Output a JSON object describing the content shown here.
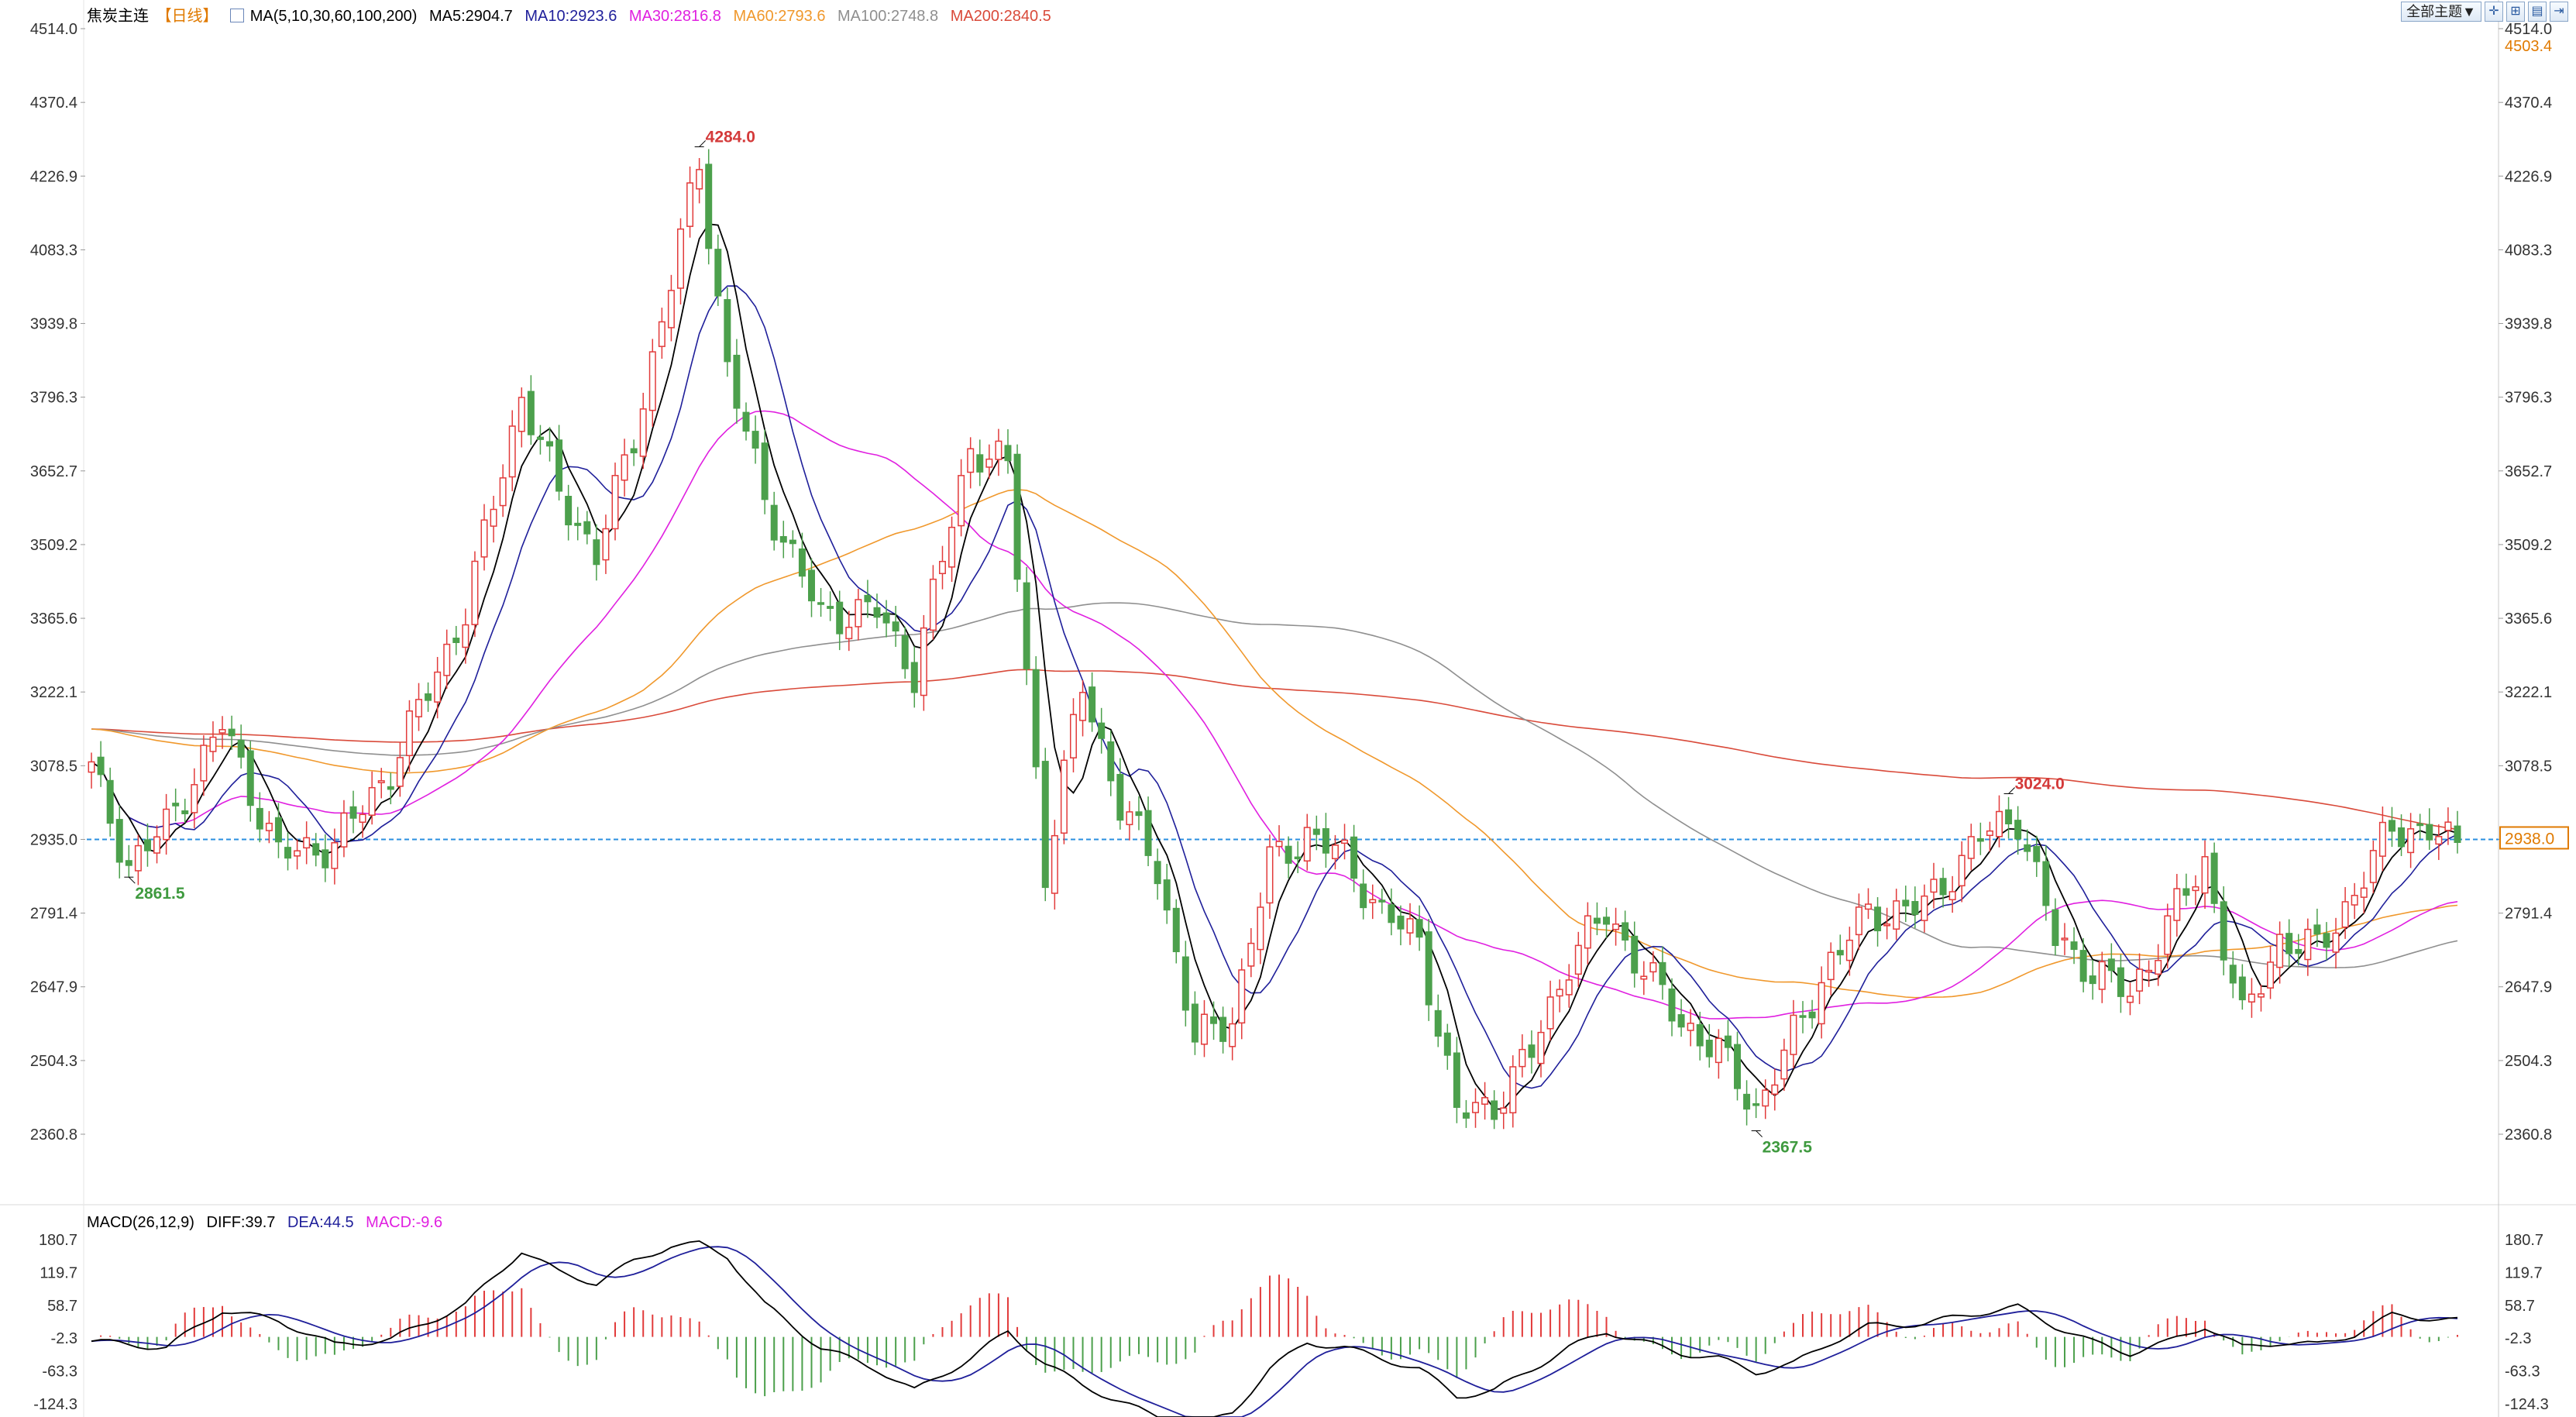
{
  "header": {
    "symbol": "焦炭主连",
    "period": "【日线】",
    "ma_label": "MA(5,10,30,60,100,200)",
    "ma5": "MA5:2904.7",
    "ma10": "MA10:2923.6",
    "ma30": "MA30:2816.8",
    "ma60": "MA60:2793.6",
    "ma100": "MA100:2748.8",
    "ma200": "MA200:2840.5"
  },
  "toolbar": {
    "theme_button": "全部主题▼"
  },
  "macd_header": {
    "label": "MACD(26,12,9)",
    "diff": "DIFF:39.7",
    "dea": "DEA:44.5",
    "macd": "MACD:-9.6"
  },
  "colors": {
    "up": "#e23b3b",
    "down": "#4ca04c",
    "ma5": "#000000",
    "ma10": "#1f1f9a",
    "ma30": "#e020e0",
    "ma60": "#f0982c",
    "ma100": "#8f8f8f",
    "ma200": "#d94a3a",
    "ref_line": "#2a8fe0"
  },
  "chart_data": {
    "type": "candlestick",
    "y_ticks": [
      "4514.0",
      "4370.4",
      "4226.9",
      "4083.3",
      "3939.8",
      "3796.3",
      "3652.7",
      "3509.2",
      "3365.6",
      "3222.1",
      "3078.5",
      "2935.0",
      "2791.4",
      "2647.9",
      "2504.3",
      "2360.8"
    ],
    "ylim": [
      2360.8,
      4514.0
    ],
    "extra_right_label": "4503.4",
    "current_price_label": "2938.0",
    "current_price": 2938.0,
    "ref_line_value": 2935.0,
    "annotations": [
      {
        "text": "4284.0",
        "value": 4284.0,
        "index": 65,
        "kind": "high"
      },
      {
        "text": "2861.5",
        "value": 2861.5,
        "index": 4,
        "kind": "low"
      },
      {
        "text": "2367.5",
        "value": 2367.5,
        "index": 178,
        "kind": "low"
      },
      {
        "text": "3024.0",
        "value": 3024.0,
        "index": 205,
        "kind": "high"
      }
    ],
    "anchors": [
      [
        0,
        3070
      ],
      [
        4,
        2885
      ],
      [
        8,
        2960
      ],
      [
        14,
        3160
      ],
      [
        20,
        2905
      ],
      [
        26,
        2925
      ],
      [
        32,
        3070
      ],
      [
        40,
        3380
      ],
      [
        46,
        3800
      ],
      [
        50,
        3610
      ],
      [
        54,
        3490
      ],
      [
        58,
        3720
      ],
      [
        62,
        4020
      ],
      [
        65,
        4260
      ],
      [
        68,
        3850
      ],
      [
        72,
        3600
      ],
      [
        78,
        3370
      ],
      [
        84,
        3380
      ],
      [
        88,
        3260
      ],
      [
        94,
        3700
      ],
      [
        98,
        3660
      ],
      [
        102,
        2870
      ],
      [
        106,
        3240
      ],
      [
        110,
        3000
      ],
      [
        114,
        2880
      ],
      [
        118,
        2540
      ],
      [
        122,
        2590
      ],
      [
        126,
        2890
      ],
      [
        130,
        2945
      ],
      [
        134,
        2900
      ],
      [
        138,
        2790
      ],
      [
        142,
        2740
      ],
      [
        146,
        2400
      ],
      [
        150,
        2420
      ],
      [
        154,
        2520
      ],
      [
        158,
        2700
      ],
      [
        162,
        2790
      ],
      [
        166,
        2680
      ],
      [
        170,
        2580
      ],
      [
        174,
        2520
      ],
      [
        178,
        2410
      ],
      [
        182,
        2550
      ],
      [
        186,
        2700
      ],
      [
        190,
        2790
      ],
      [
        196,
        2805
      ],
      [
        202,
        2940
      ],
      [
        206,
        2980
      ],
      [
        210,
        2740
      ],
      [
        214,
        2680
      ],
      [
        218,
        2630
      ],
      [
        222,
        2770
      ],
      [
        226,
        2890
      ],
      [
        230,
        2580
      ],
      [
        234,
        2740
      ],
      [
        238,
        2720
      ],
      [
        242,
        2830
      ],
      [
        246,
        2960
      ],
      [
        250,
        2950
      ],
      [
        253,
        2920
      ]
    ],
    "macd_ticks": [
      "180.7",
      "119.7",
      "58.7",
      "-2.3",
      "-63.3",
      "-124.3"
    ],
    "macd_ylim": [
      -124.3,
      180.7
    ],
    "macd_anchors": [
      [
        0,
        -8
      ],
      [
        8,
        -20
      ],
      [
        14,
        50
      ],
      [
        20,
        30
      ],
      [
        26,
        -15
      ],
      [
        32,
        -5
      ],
      [
        40,
        60
      ],
      [
        46,
        160
      ],
      [
        50,
        120
      ],
      [
        54,
        100
      ],
      [
        58,
        140
      ],
      [
        62,
        170
      ],
      [
        65,
        172
      ],
      [
        68,
        150
      ],
      [
        72,
        60
      ],
      [
        78,
        -20
      ],
      [
        84,
        -60
      ],
      [
        88,
        -100
      ],
      [
        94,
        -40
      ],
      [
        98,
        10
      ],
      [
        102,
        -50
      ],
      [
        106,
        -90
      ],
      [
        110,
        -120
      ],
      [
        114,
        -150
      ],
      [
        118,
        -170
      ],
      [
        122,
        -140
      ],
      [
        126,
        -60
      ],
      [
        130,
        -10
      ],
      [
        134,
        -20
      ],
      [
        138,
        -40
      ],
      [
        142,
        -60
      ],
      [
        146,
        -110
      ],
      [
        150,
        -100
      ],
      [
        154,
        -60
      ],
      [
        158,
        -20
      ],
      [
        162,
        10
      ],
      [
        166,
        -10
      ],
      [
        170,
        -30
      ],
      [
        174,
        -40
      ],
      [
        178,
        -65
      ],
      [
        182,
        -50
      ],
      [
        186,
        -10
      ],
      [
        190,
        20
      ],
      [
        196,
        25
      ],
      [
        202,
        45
      ],
      [
        206,
        55
      ],
      [
        210,
        20
      ],
      [
        214,
        -10
      ],
      [
        218,
        -30
      ],
      [
        222,
        -10
      ],
      [
        226,
        20
      ],
      [
        230,
        -20
      ],
      [
        234,
        -10
      ],
      [
        238,
        -15
      ],
      [
        242,
        5
      ],
      [
        246,
        40
      ],
      [
        250,
        35
      ],
      [
        253,
        30
      ]
    ]
  }
}
